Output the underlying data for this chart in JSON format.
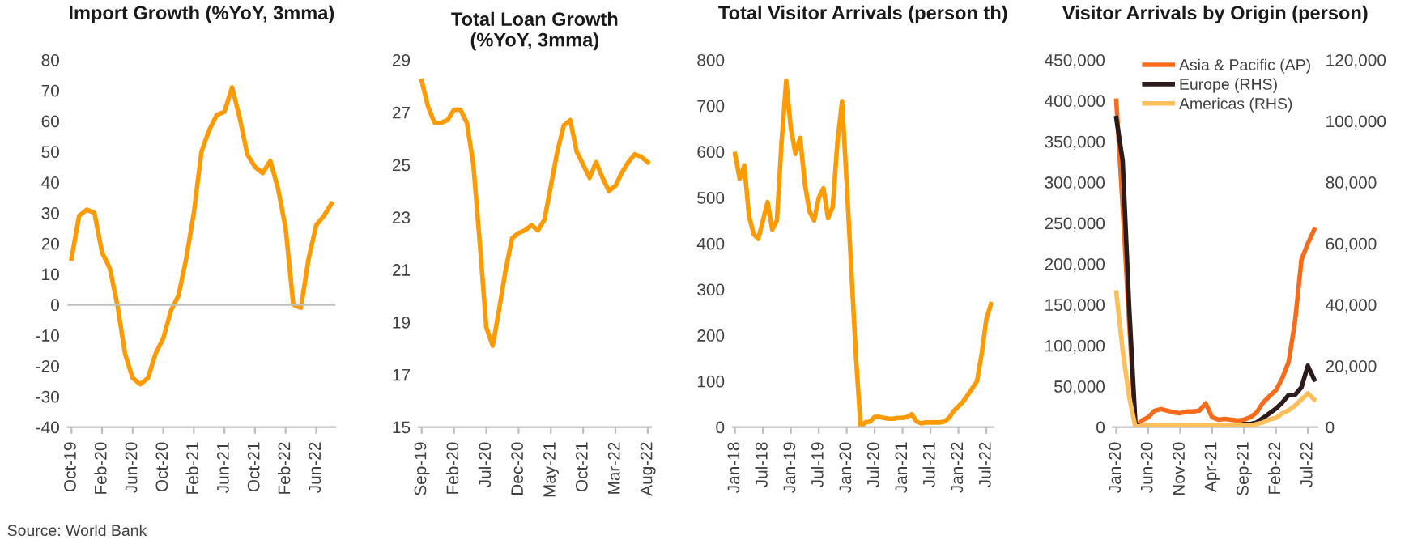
{
  "chart_data": [
    {
      "type": "line",
      "title": "Import Growth (%YoY, 3mma)",
      "categories": [
        "Oct-19",
        null,
        null,
        null,
        "Feb-20",
        null,
        null,
        null,
        "Jun-20",
        null,
        null,
        null,
        "Oct-20",
        null,
        null,
        null,
        "Feb-21",
        null,
        null,
        null,
        "Jun-21",
        null,
        null,
        null,
        "Oct-21",
        null,
        null,
        null,
        "Feb-22",
        null,
        null,
        null,
        "Jun-22",
        null,
        null
      ],
      "series": [
        {
          "color": "#ff9a00",
          "values": [
            15,
            29,
            31,
            30,
            17,
            12,
            0,
            -16,
            -24,
            -26,
            -24,
            -16,
            -11,
            -2,
            3,
            15,
            30,
            50,
            57,
            62,
            63,
            71,
            61,
            49,
            45,
            43,
            47,
            38,
            25,
            0,
            -1,
            15,
            26,
            29,
            33
          ]
        }
      ],
      "ylim": [
        -40,
        80
      ],
      "yticks": [
        -40,
        -30,
        -20,
        -10,
        0,
        10,
        20,
        30,
        40,
        50,
        60,
        70,
        80
      ],
      "ref_lines": [
        {
          "axis": "y",
          "value": 0,
          "color": "#bfbfbf"
        }
      ],
      "grid": false,
      "legend": false
    },
    {
      "type": "line",
      "title": "Total Loan Growth\n(%YoY, 3mma)",
      "categories": [
        "Sep-19",
        null,
        null,
        null,
        null,
        "Feb-20",
        null,
        null,
        null,
        null,
        "Jul-20",
        null,
        null,
        null,
        null,
        "Dec-20",
        null,
        null,
        null,
        null,
        "May-21",
        null,
        null,
        null,
        null,
        "Oct-21",
        null,
        null,
        null,
        null,
        "Mar-22",
        null,
        null,
        null,
        null,
        "Aug-22"
      ],
      "series": [
        {
          "color": "#ff9a00",
          "values": [
            28.2,
            27.2,
            26.6,
            26.6,
            26.7,
            27.1,
            27.1,
            26.6,
            25.0,
            22.0,
            18.8,
            18.1,
            19.5,
            21.0,
            22.2,
            22.4,
            22.5,
            22.7,
            22.5,
            22.9,
            24.2,
            25.5,
            26.5,
            26.7,
            25.5,
            25.0,
            24.5,
            25.1,
            24.5,
            24.0,
            24.2,
            24.7,
            25.1,
            25.4,
            25.3,
            25.1
          ]
        }
      ],
      "ylim": [
        15,
        29
      ],
      "yticks": [
        15,
        17,
        19,
        21,
        23,
        25,
        27,
        29
      ],
      "grid": false,
      "legend": false
    },
    {
      "type": "line",
      "title": "Total Visitor Arrivals (person th)",
      "categories": [
        "Jan-18",
        null,
        null,
        null,
        null,
        null,
        "Jul-18",
        null,
        null,
        null,
        null,
        null,
        "Jan-19",
        null,
        null,
        null,
        null,
        null,
        "Jul-19",
        null,
        null,
        null,
        null,
        null,
        "Jan-20",
        null,
        null,
        null,
        null,
        null,
        "Jul-20",
        null,
        null,
        null,
        null,
        null,
        "Jan-21",
        null,
        null,
        null,
        null,
        null,
        "Jul-21",
        null,
        null,
        null,
        null,
        null,
        "Jan-22",
        null,
        null,
        null,
        null,
        null,
        "Jul-22",
        null
      ],
      "series": [
        {
          "color": "#ff9a00",
          "values": [
            595,
            540,
            570,
            460,
            420,
            410,
            450,
            490,
            430,
            450,
            620,
            755,
            650,
            595,
            630,
            530,
            470,
            450,
            500,
            520,
            455,
            480,
            620,
            710,
            530,
            340,
            150,
            0,
            10,
            12,
            22,
            22,
            20,
            18,
            18,
            20,
            20,
            22,
            28,
            12,
            8,
            10,
            10,
            10,
            10,
            12,
            20,
            35,
            45,
            55,
            70,
            85,
            100,
            160,
            235,
            268
          ]
        }
      ],
      "ylim": [
        0,
        800
      ],
      "yticks": [
        0,
        100,
        200,
        300,
        400,
        500,
        600,
        700,
        800
      ],
      "grid": false,
      "legend": false
    },
    {
      "type": "line",
      "title": "Visitor Arrivals by Origin (person)",
      "categories": [
        "Jan-20",
        null,
        null,
        null,
        null,
        "Jun-20",
        null,
        null,
        null,
        null,
        "Nov-20",
        null,
        null,
        null,
        null,
        "Apr-21",
        null,
        null,
        null,
        null,
        "Sep-21",
        null,
        null,
        null,
        null,
        "Feb-22",
        null,
        null,
        null,
        null,
        "Jul-22",
        null
      ],
      "series": [
        {
          "name": "Asia & Pacific (AP)",
          "color": "#f76b1c",
          "values": [
            400000,
            270000,
            130000,
            0,
            8000,
            12000,
            20000,
            22000,
            20000,
            18000,
            17000,
            19000,
            19000,
            20000,
            29000,
            12000,
            9000,
            10000,
            9000,
            8000,
            9000,
            12000,
            18000,
            30000,
            38000,
            45000,
            60000,
            80000,
            130000,
            205000,
            225000,
            242000
          ]
        },
        {
          "name": "Europe (RHS)",
          "color": "#2b1b1b",
          "axis": "y2",
          "values": [
            101000,
            87000,
            40000,
            500,
            500,
            500,
            500,
            500,
            500,
            500,
            500,
            500,
            500,
            500,
            500,
            500,
            500,
            500,
            500,
            500,
            1000,
            1000,
            1500,
            3000,
            4500,
            6000,
            8000,
            10500,
            10500,
            13000,
            20000,
            15500
          ]
        },
        {
          "name": "Americas (RHS)",
          "color": "#ffbe5c",
          "axis": "y2",
          "values": [
            44000,
            25000,
            10000,
            0,
            500,
            500,
            500,
            500,
            500,
            500,
            500,
            500,
            500,
            500,
            500,
            500,
            500,
            500,
            500,
            500,
            500,
            500,
            1000,
            1500,
            2500,
            3000,
            4500,
            5500,
            7000,
            9000,
            11000,
            9000
          ]
        }
      ],
      "ylim": [
        0,
        450000
      ],
      "yticks": [
        {
          "value": 0,
          "label": "0"
        },
        {
          "value": 50000,
          "label": "50,000"
        },
        {
          "value": 100000,
          "label": "100,000"
        },
        {
          "value": 150000,
          "label": "150,000"
        },
        {
          "value": 200000,
          "label": "200,000"
        },
        {
          "value": 250000,
          "label": "250,000"
        },
        {
          "value": 300000,
          "label": "300,000"
        },
        {
          "value": 350000,
          "label": "350,000"
        },
        {
          "value": 400000,
          "label": "400,000"
        },
        {
          "value": 450000,
          "label": "450,000"
        }
      ],
      "y2lim": [
        0,
        120000
      ],
      "y2ticks": [
        {
          "value": 0,
          "label": "0"
        },
        {
          "value": 20000,
          "label": "20,000"
        },
        {
          "value": 40000,
          "label": "40,000"
        },
        {
          "value": 60000,
          "label": "60,000"
        },
        {
          "value": 80000,
          "label": "80,000"
        },
        {
          "value": 100000,
          "label": "100,000"
        },
        {
          "value": 120000,
          "label": "120,000"
        }
      ],
      "grid": false,
      "legend": "top right",
      "annotations": [
        "Source: World Bank"
      ]
    }
  ]
}
